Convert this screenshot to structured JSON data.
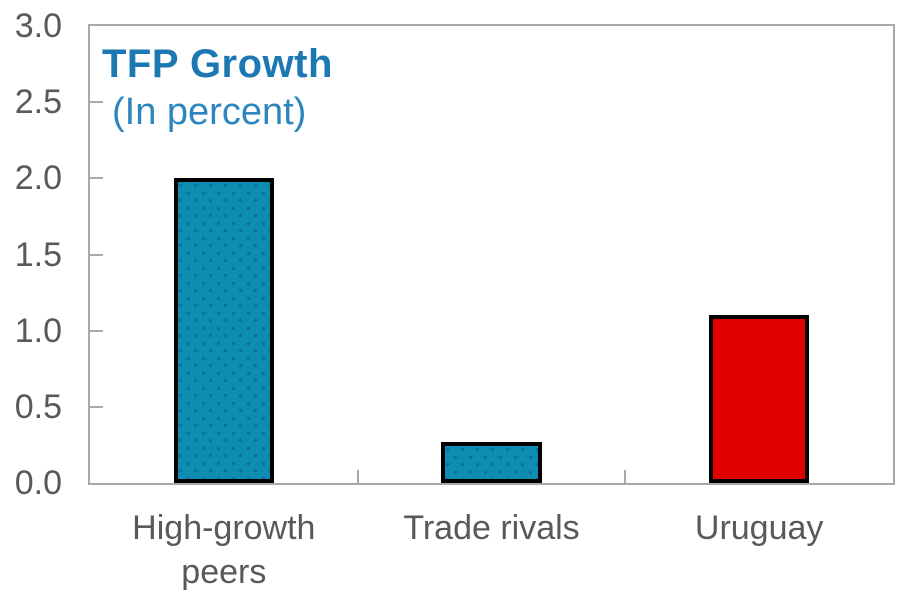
{
  "chart_data": {
    "type": "bar",
    "title": "TFP Growth",
    "subtitle": "(In percent)",
    "categories": [
      "High-growth peers",
      "Trade rivals",
      "Uruguay"
    ],
    "values": [
      2.0,
      0.27,
      1.1
    ],
    "bar_colors": [
      "#0E8CB2",
      "#0E8CB2",
      "#E10000"
    ],
    "bar_patterns": [
      "dots",
      "dots",
      "solid"
    ],
    "xlabel": "",
    "ylabel": "",
    "ylim": [
      0,
      3.0
    ],
    "ytick_step": 0.5,
    "ytick_labels": [
      "0.0",
      "0.5",
      "1.0",
      "1.5",
      "2.0",
      "2.5",
      "3.0"
    ],
    "grid": "off",
    "legend": "none",
    "plot_border": "on"
  },
  "colors": {
    "title": "#1B78B2",
    "subtitle": "#2E86BE",
    "axis": "#A8A8A8",
    "tick_label": "#595959",
    "bar_border": "#000000",
    "background": "#FFFFFF"
  }
}
